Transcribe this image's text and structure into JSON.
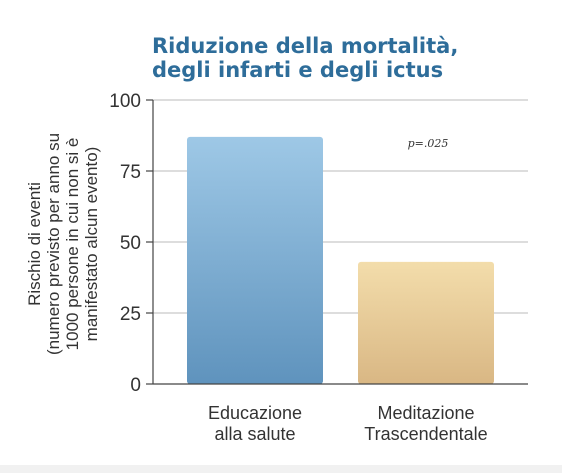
{
  "chart_data": {
    "type": "bar",
    "title_lines": [
      "Riduzione della mortalità,",
      "degli infarti e degli ictus"
    ],
    "ylabel_lines": [
      "Rischio di eventi",
      "(numero previsto per anno su",
      "1000 persone in cui non si è",
      "manifestato alcun evento)"
    ],
    "xlabel": "",
    "categories": [
      [
        "Educazione",
        "alla salute"
      ],
      [
        "Meditazione",
        "Trascendentale"
      ]
    ],
    "values": [
      87,
      43
    ],
    "ylim": [
      0,
      100
    ],
    "yticks": [
      0,
      25,
      50,
      75,
      100
    ],
    "grid": true,
    "annotation": "p=.025",
    "colors": {
      "title": "#2e6d9a",
      "bar_1_top": "#9ec8e6",
      "bar_1_bottom": "#5f93bd",
      "bar_2_top": "#f3ddab",
      "bar_2_bottom": "#d9b784",
      "grid": "#bbbbbb",
      "axis": "#444444"
    }
  }
}
